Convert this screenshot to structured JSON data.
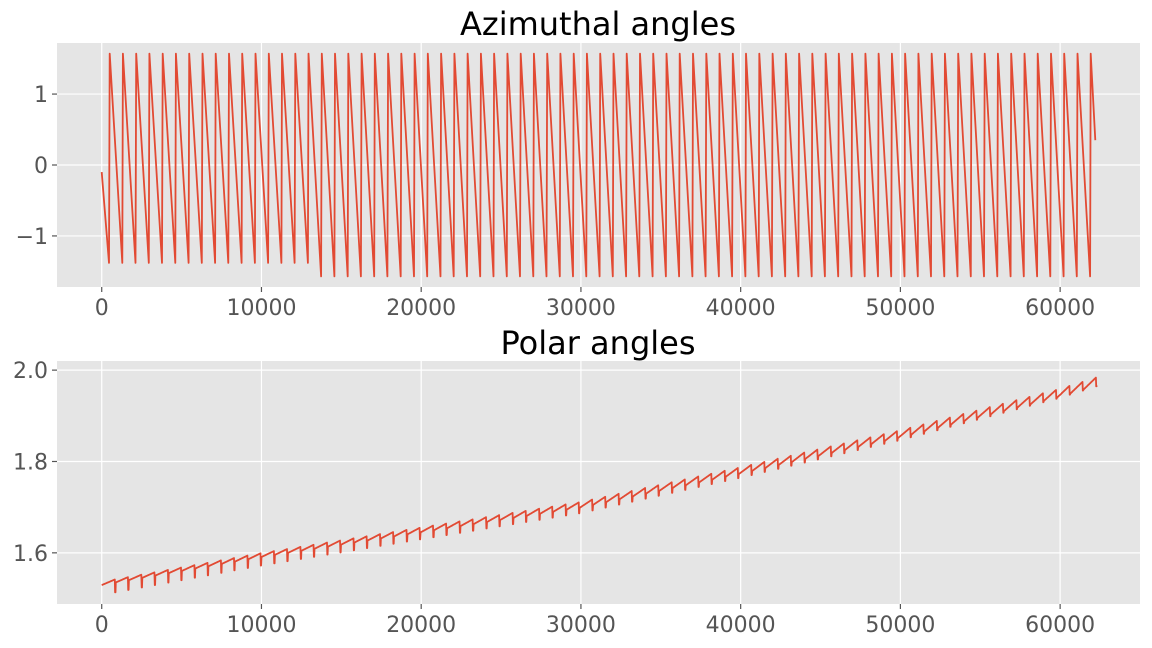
{
  "colors": {
    "background": "#ffffff",
    "axes_face": "#e5e5e5",
    "grid": "#ffffff",
    "line": "#e24a33",
    "tick_text": "#555555"
  },
  "chart_data": [
    {
      "type": "line",
      "title": "Azimuthal angles",
      "xlabel": "",
      "ylabel": "",
      "xlim": [
        -2800,
        65000
      ],
      "ylim": [
        -1.72,
        1.72
      ],
      "grid": true,
      "xticks": [
        0,
        10000,
        20000,
        30000,
        40000,
        50000,
        60000
      ],
      "xtick_labels": [
        "0",
        "10000",
        "20000",
        "30000",
        "40000",
        "50000",
        "60000"
      ],
      "yticks": [
        1,
        0,
        -1
      ],
      "ytick_labels": [
        "1",
        "0",
        "−1"
      ],
      "series": [
        {
          "sawtooth": {
            "first_x": 0,
            "first_y": -0.1,
            "period": 830,
            "last_x": 62200,
            "last_y": 0.35,
            "peak_y": 1.57,
            "trough_y_early": -1.38,
            "trough_y_late": -1.57,
            "late_from_x": 13000
          }
        }
      ]
    },
    {
      "type": "line",
      "title": "Polar angles",
      "xlabel": "",
      "ylabel": "",
      "xlim": [
        -2800,
        65000
      ],
      "ylim": [
        1.488,
        2.02
      ],
      "grid": true,
      "xticks": [
        0,
        10000,
        20000,
        30000,
        40000,
        50000,
        60000
      ],
      "xtick_labels": [
        "0",
        "10000",
        "20000",
        "30000",
        "40000",
        "50000",
        "60000"
      ],
      "yticks": [
        2.0,
        1.8,
        1.6
      ],
      "ytick_labels": [
        "2.0",
        "1.8",
        "1.6"
      ],
      "series": [
        {
          "trend_points": [
            [
              0,
              1.533
            ],
            [
              10000,
              1.595
            ],
            [
              20000,
              1.65
            ],
            [
              30000,
              1.705
            ],
            [
              40000,
              1.78
            ],
            [
              50000,
              1.86
            ],
            [
              60000,
              1.95
            ],
            [
              62300,
              1.975
            ]
          ],
          "period": 830,
          "ramp_amplitude": 0.012,
          "dip_depth_early": 0.025,
          "dip_depth_late": 0.01
        }
      ]
    }
  ]
}
